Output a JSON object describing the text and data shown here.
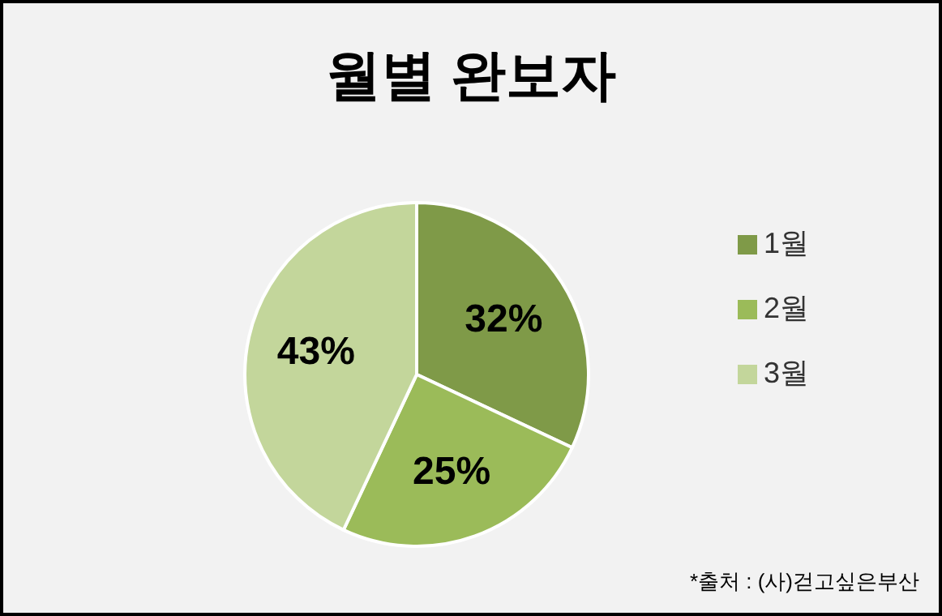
{
  "chart_data": {
    "type": "pie",
    "title": "월별 완보자",
    "categories": [
      "1월",
      "2월",
      "3월"
    ],
    "values": [
      32,
      25,
      43
    ],
    "value_labels": [
      "32%",
      "25%",
      "43%"
    ],
    "colors": [
      "#7f9a48",
      "#9bbb59",
      "#c3d69b"
    ],
    "legend": "right",
    "annotations": [
      "*출처 : (사)걷고싶은부산"
    ]
  }
}
